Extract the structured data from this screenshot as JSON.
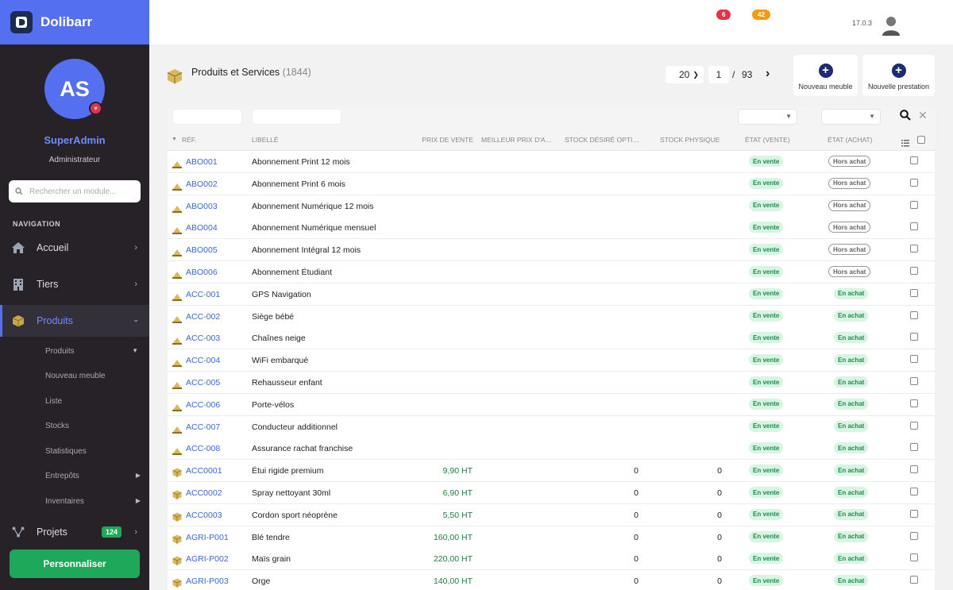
{
  "app": {
    "name": "Dolibarr",
    "version": "17.0.3"
  },
  "notifications": [
    {
      "count": "6",
      "color": "#e0344a"
    },
    {
      "count": "42",
      "color": "#f39c12"
    }
  ],
  "user": {
    "initials": "AS",
    "name": "SuperAdmin",
    "role": "Administrateur"
  },
  "sidebar": {
    "search_placeholder": "Rechercher un module...",
    "nav_title": "NAVIGATION",
    "items": [
      {
        "label": "Accueil",
        "icon": "home-icon"
      },
      {
        "label": "Tiers",
        "icon": "building-icon"
      },
      {
        "label": "Produits",
        "icon": "box-icon"
      },
      {
        "label": "Projets",
        "icon": "project-icon",
        "badge": "124"
      }
    ],
    "sub_items": [
      "Produits",
      "Nouveau meuble",
      "Liste",
      "Stocks",
      "Statistiques",
      "Entrepôts",
      "Inventaires"
    ],
    "customize_label": "Personnaliser"
  },
  "page": {
    "title": "Produits et Services",
    "count": "(1844)",
    "per_page": "20",
    "current_page": "1",
    "separator": "/",
    "total_pages": "93",
    "actions": [
      "Nouveau meuble",
      "Nouvelle prestation"
    ]
  },
  "table": {
    "headers": [
      "RÉF.",
      "LIBELLÉ",
      "PRIX DE VENTE",
      "MEILLEUR PRIX D'ACHAT",
      "STOCK DÉSIRÉ OPTIMAL",
      "STOCK PHYSIQUE",
      "ÉTAT (VENTE)",
      "ÉTAT (ACHAT)"
    ],
    "rows": [
      {
        "type": "service",
        "ref": "ABO001",
        "label": "Abonnement Print 12 mois",
        "price": "",
        "stock_desired": "",
        "stock": "",
        "sell": "En vente",
        "buy": "Hors achat"
      },
      {
        "type": "service",
        "ref": "ABO002",
        "label": "Abonnement Print 6 mois",
        "price": "",
        "stock_desired": "",
        "stock": "",
        "sell": "En vente",
        "buy": "Hors achat"
      },
      {
        "type": "service",
        "ref": "ABO003",
        "label": "Abonnement Numérique 12 mois",
        "price": "",
        "stock_desired": "",
        "stock": "",
        "sell": "En vente",
        "buy": "Hors achat"
      },
      {
        "type": "service",
        "ref": "ABO004",
        "label": "Abonnement Numérique mensuel",
        "price": "",
        "stock_desired": "",
        "stock": "",
        "sell": "En vente",
        "buy": "Hors achat"
      },
      {
        "type": "service",
        "ref": "ABO005",
        "label": "Abonnement Intégral 12 mois",
        "price": "",
        "stock_desired": "",
        "stock": "",
        "sell": "En vente",
        "buy": "Hors achat"
      },
      {
        "type": "service",
        "ref": "ABO006",
        "label": "Abonnement Étudiant",
        "price": "",
        "stock_desired": "",
        "stock": "",
        "sell": "En vente",
        "buy": "Hors achat"
      },
      {
        "type": "service",
        "ref": "ACC-001",
        "label": "GPS Navigation",
        "price": "",
        "stock_desired": "",
        "stock": "",
        "sell": "En vente",
        "buy": "En achat"
      },
      {
        "type": "service",
        "ref": "ACC-002",
        "label": "Siège bébé",
        "price": "",
        "stock_desired": "",
        "stock": "",
        "sell": "En vente",
        "buy": "En achat"
      },
      {
        "type": "service",
        "ref": "ACC-003",
        "label": "Chaînes neige",
        "price": "",
        "stock_desired": "",
        "stock": "",
        "sell": "En vente",
        "buy": "En achat"
      },
      {
        "type": "service",
        "ref": "ACC-004",
        "label": "WiFi embarqué",
        "price": "",
        "stock_desired": "",
        "stock": "",
        "sell": "En vente",
        "buy": "En achat"
      },
      {
        "type": "service",
        "ref": "ACC-005",
        "label": "Rehausseur enfant",
        "price": "",
        "stock_desired": "",
        "stock": "",
        "sell": "En vente",
        "buy": "En achat"
      },
      {
        "type": "service",
        "ref": "ACC-006",
        "label": "Porte-vélos",
        "price": "",
        "stock_desired": "",
        "stock": "",
        "sell": "En vente",
        "buy": "En achat"
      },
      {
        "type": "service",
        "ref": "ACC-007",
        "label": "Conducteur additionnel",
        "price": "",
        "stock_desired": "",
        "stock": "",
        "sell": "En vente",
        "buy": "En achat"
      },
      {
        "type": "service",
        "ref": "ACC-008",
        "label": "Assurance rachat franchise",
        "price": "",
        "stock_desired": "",
        "stock": "",
        "sell": "En vente",
        "buy": "En achat"
      },
      {
        "type": "product",
        "ref": "ACC0001",
        "label": "Étui rigide premium",
        "price": "9,90 HT",
        "stock_desired": "0",
        "stock": "0",
        "sell": "En vente",
        "buy": "En achat"
      },
      {
        "type": "product",
        "ref": "ACC0002",
        "label": "Spray nettoyant 30ml",
        "price": "6,90 HT",
        "stock_desired": "0",
        "stock": "0",
        "sell": "En vente",
        "buy": "En achat"
      },
      {
        "type": "product",
        "ref": "ACC0003",
        "label": "Cordon sport néoprène",
        "price": "5,50 HT",
        "stock_desired": "0",
        "stock": "0",
        "sell": "En vente",
        "buy": "En achat"
      },
      {
        "type": "product",
        "ref": "AGRI-P001",
        "label": "Blé tendre",
        "price": "160,00 HT",
        "stock_desired": "0",
        "stock": "0",
        "sell": "En vente",
        "buy": "En achat"
      },
      {
        "type": "product",
        "ref": "AGRI-P002",
        "label": "Maïs grain",
        "price": "220,00 HT",
        "stock_desired": "0",
        "stock": "0",
        "sell": "En vente",
        "buy": "En achat"
      },
      {
        "type": "product",
        "ref": "AGRI-P003",
        "label": "Orge",
        "price": "140,00 HT",
        "stock_desired": "0",
        "stock": "0",
        "sell": "En vente",
        "buy": "En achat"
      }
    ]
  },
  "colors": {
    "accent": "#5470f0",
    "sidebar_bg": "#262228",
    "success": "#1ea95a",
    "link": "#3a6ad0"
  }
}
